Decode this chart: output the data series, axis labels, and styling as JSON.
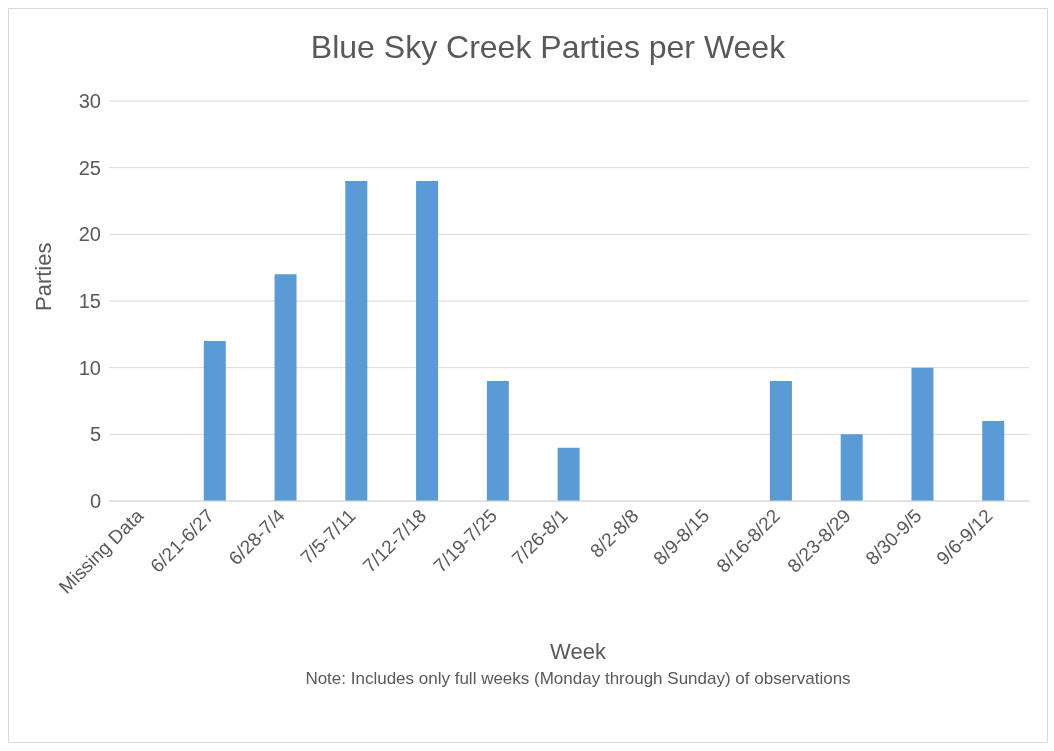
{
  "chart_data": {
    "type": "bar",
    "title": "Blue Sky Creek Parties per Week",
    "xlabel": "Week",
    "ylabel": "Parties",
    "categories": [
      "Missing Data",
      "6/21-6/27",
      "6/28-7/4",
      "7/5-7/11",
      "7/12-7/18",
      "7/19-7/25",
      "7/26-8/1",
      "8/2-8/8",
      "8/9-8/15",
      "8/16-8/22",
      "8/23-8/29",
      "8/30-9/5",
      "9/6-9/12"
    ],
    "values": [
      null,
      12,
      17,
      24,
      24,
      9,
      4,
      0,
      0,
      9,
      5,
      10,
      6
    ],
    "color": "#5b9bd5",
    "ylim": [
      0,
      30
    ],
    "yticks": [
      0,
      5,
      10,
      15,
      20,
      25,
      30
    ],
    "grid": "y",
    "legend": false,
    "annotations": [
      "Note: Includes only full weeks (Monday through Sunday) of observations"
    ]
  }
}
